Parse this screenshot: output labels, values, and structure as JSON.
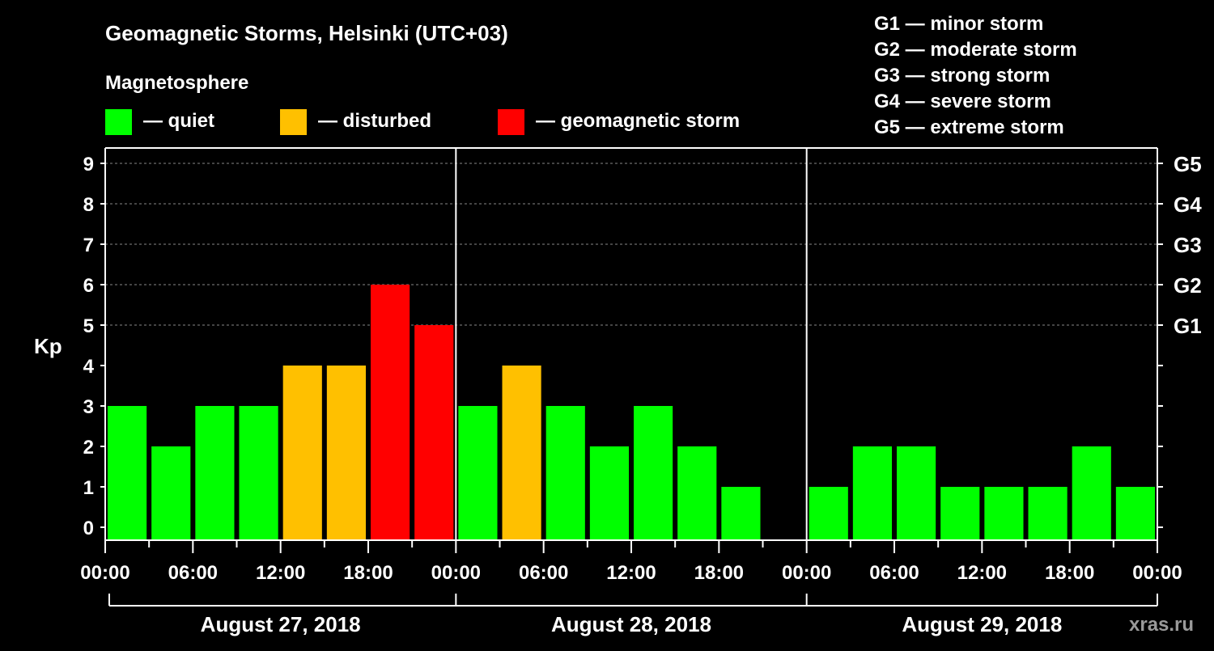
{
  "chart_data": {
    "type": "bar",
    "title": "Geomagnetic Storms, Helsinki (UTC+03)",
    "legend_title": "Magnetosphere",
    "legend": [
      {
        "label": "— quiet",
        "color": "#00ff00"
      },
      {
        "label": "— disturbed",
        "color": "#ffc000"
      },
      {
        "label": "— geomagnetic storm",
        "color": "#ff0000"
      }
    ],
    "scale_legend": [
      "G1 — minor storm",
      "G2 — moderate storm",
      "G3 — strong storm",
      "G4 — severe storm",
      "G5 — extreme storm"
    ],
    "ylabel": "Kp",
    "ylim": [
      0,
      9
    ],
    "yticks": [
      "0",
      "1",
      "2",
      "3",
      "4",
      "5",
      "6",
      "7",
      "8",
      "9"
    ],
    "right_ticks": [
      {
        "value": 5,
        "label": "G1"
      },
      {
        "value": 6,
        "label": "G2"
      },
      {
        "value": 7,
        "label": "G3"
      },
      {
        "value": 8,
        "label": "G4"
      },
      {
        "value": 9,
        "label": "G5"
      }
    ],
    "xtick_labels": [
      "00:00",
      "06:00",
      "12:00",
      "18:00",
      "00:00",
      "06:00",
      "12:00",
      "18:00",
      "00:00",
      "06:00",
      "12:00",
      "18:00",
      "00:00"
    ],
    "days": [
      {
        "label": "August 27, 2018",
        "values": [
          3,
          2,
          3,
          3,
          4,
          4,
          6,
          5
        ]
      },
      {
        "label": "August 28, 2018",
        "values": [
          3,
          4,
          3,
          2,
          3,
          2,
          1,
          null
        ]
      },
      {
        "label": "August 29, 2018",
        "values": [
          1,
          2,
          2,
          1,
          1,
          1,
          2,
          1
        ]
      }
    ],
    "grid": "dashed at 5-9"
  },
  "watermark": "xras.ru"
}
